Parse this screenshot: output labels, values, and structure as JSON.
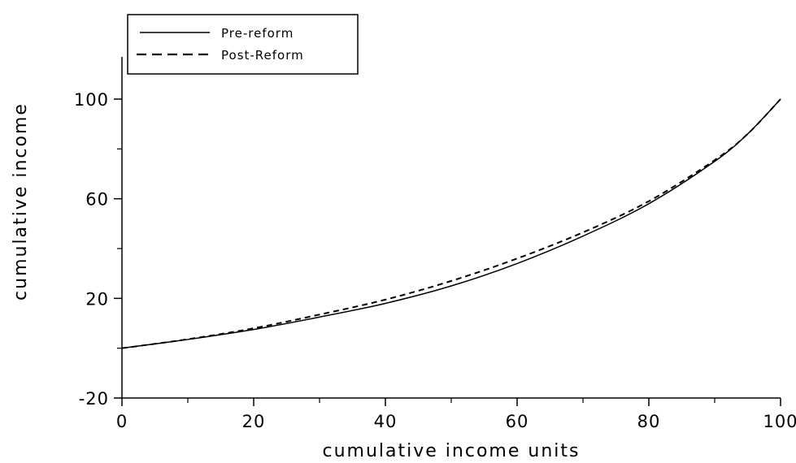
{
  "chart_data": {
    "type": "line",
    "title": "",
    "xlabel": "cumulative income units",
    "ylabel": "cumulative income",
    "xlim": [
      0,
      100
    ],
    "ylim": [
      -20,
      100
    ],
    "x_ticks": [
      {
        "value": 0,
        "label": "0"
      },
      {
        "value": 20,
        "label": "20"
      },
      {
        "value": 40,
        "label": "40"
      },
      {
        "value": 60,
        "label": "60"
      },
      {
        "value": 80,
        "label": "80"
      },
      {
        "value": 100,
        "label": "100"
      }
    ],
    "y_ticks": [
      {
        "value": -20,
        "label": "-20"
      },
      {
        "value": 20,
        "label": "20"
      },
      {
        "value": 60,
        "label": "60"
      },
      {
        "value": 100,
        "label": "100"
      }
    ],
    "y_minor_ticks": [
      0,
      40,
      80
    ],
    "x_minor_ticks": [
      10,
      30,
      50,
      70,
      90
    ],
    "legend_position": "top-left",
    "grid": false,
    "series": [
      {
        "name": "Pre-reform",
        "style": "solid",
        "color": "#000000",
        "x": [
          0,
          10,
          20,
          30,
          40,
          50,
          60,
          70,
          80,
          90,
          95,
          100
        ],
        "y": [
          0,
          3.5,
          7.5,
          12.5,
          18,
          25,
          34,
          45,
          58,
          75,
          86,
          100
        ]
      },
      {
        "name": "Post-Reform",
        "style": "dashed",
        "color": "#000000",
        "x": [
          0,
          10,
          20,
          30,
          40,
          50,
          60,
          70,
          80,
          90,
          95,
          100
        ],
        "y": [
          0,
          3.6,
          8,
          13.5,
          19.5,
          27,
          36,
          46.5,
          59,
          75.5,
          86,
          100
        ]
      }
    ]
  }
}
